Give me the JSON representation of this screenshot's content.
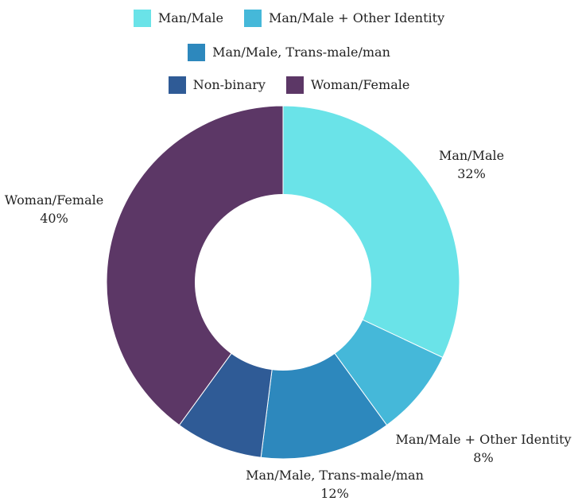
{
  "chart_data": {
    "type": "pie",
    "donut": true,
    "categories": [
      "Man/Male",
      "Man/Male + Other Identity",
      "Man/Male, Trans-male/man",
      "Non-binary",
      "Woman/Female"
    ],
    "values": [
      32,
      8,
      12,
      8,
      40
    ],
    "value_labels": [
      "32%",
      "8%",
      "12%",
      "",
      "40%"
    ],
    "colors": [
      "#6ae3e8",
      "#45b8d9",
      "#2d88bd",
      "#2f5b96",
      "#5c3766"
    ],
    "legend": {
      "placement": "top",
      "entries": [
        "Man/Male",
        "Man/Male + Other Identity",
        "Man/Male, Trans-male/man",
        "Non-binary",
        "Woman/Female"
      ]
    },
    "title": ""
  }
}
